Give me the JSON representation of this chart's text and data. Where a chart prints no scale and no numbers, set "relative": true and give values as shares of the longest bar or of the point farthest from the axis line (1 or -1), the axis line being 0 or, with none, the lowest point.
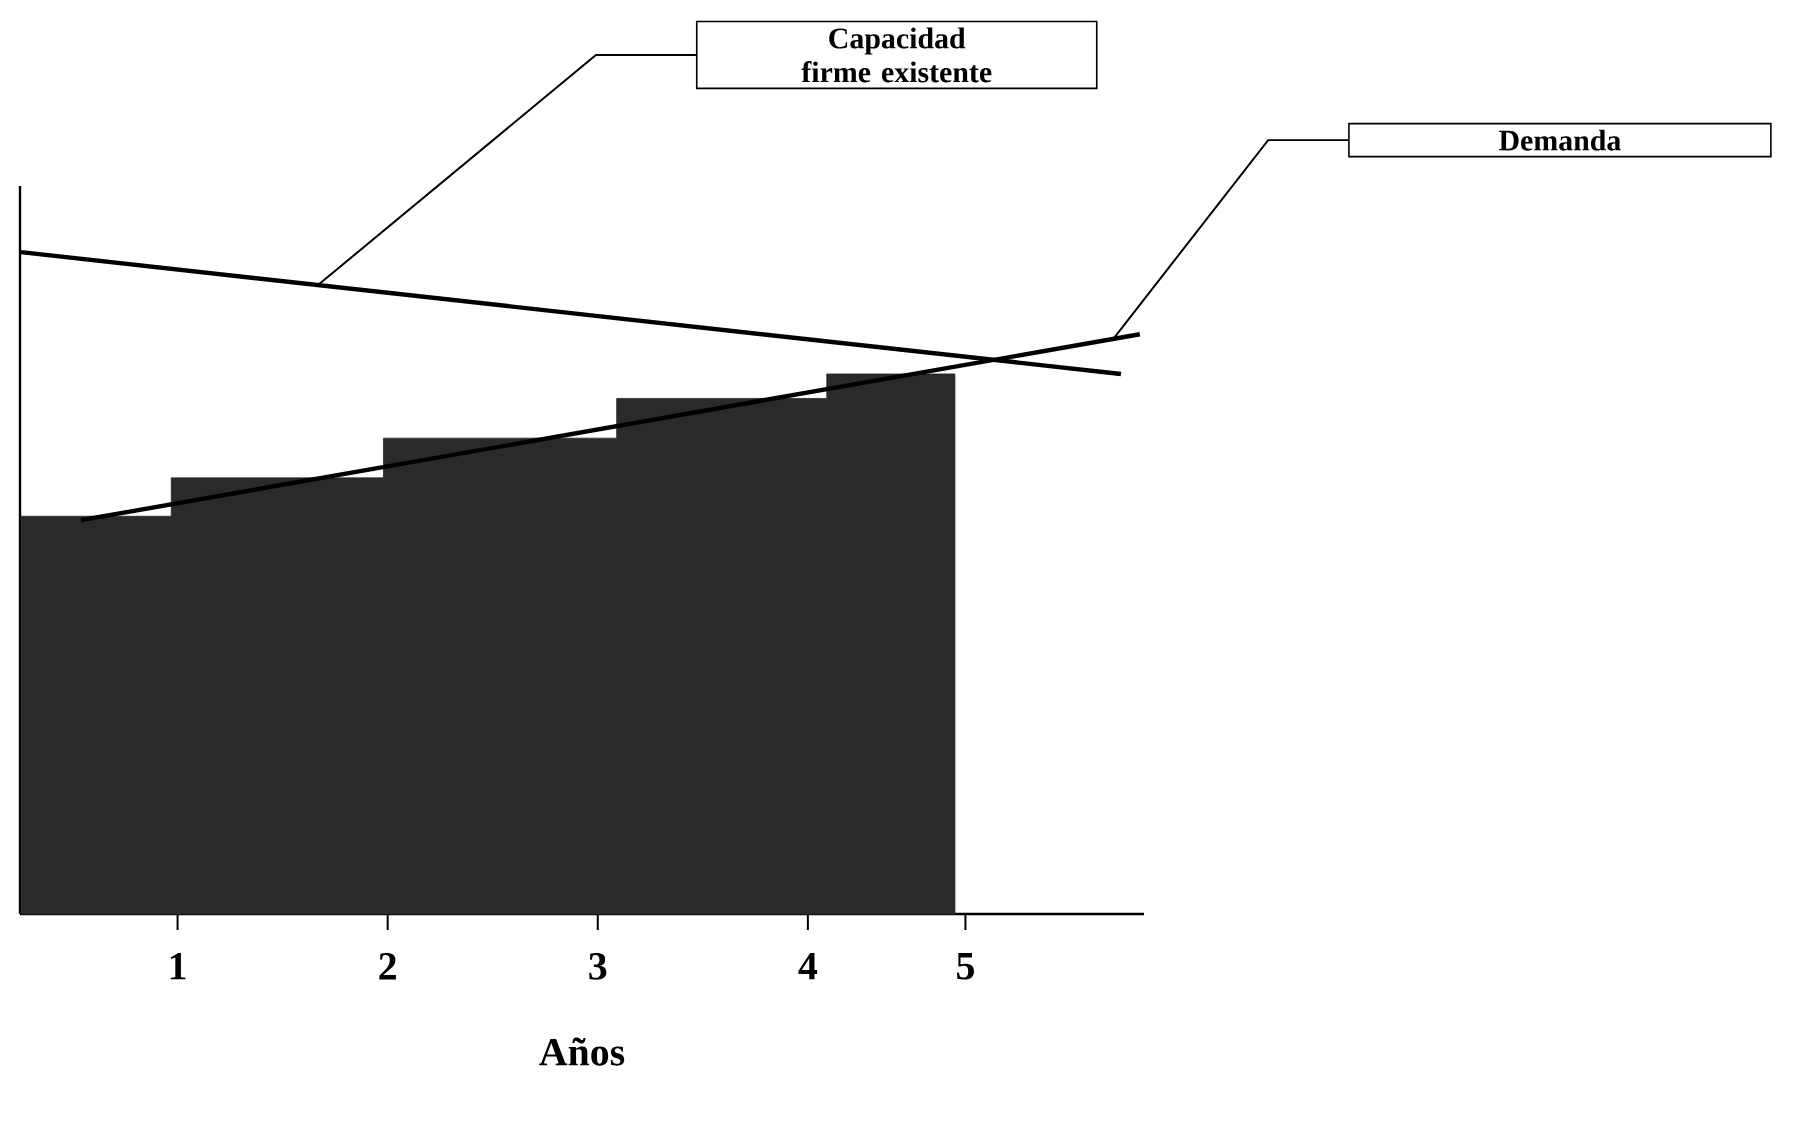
{
  "chart_data": {
    "type": "line",
    "relative": true,
    "xlabel": "Años",
    "xlim": [
      0.25,
      5.6
    ],
    "xticks": [
      1,
      2,
      3,
      4,
      {
        "value": 4.75,
        "label": "5"
      }
    ],
    "grid": false,
    "marker": "none",
    "series": [
      {
        "name": "Capacidad firme existente",
        "color": "#000000",
        "x": [
          0.255,
          5.49
        ],
        "values": [
          1.0,
          0.816
        ]
      },
      {
        "name": "Demanda",
        "color": "#000000",
        "x": [
          0.54,
          5.58
        ],
        "values": [
          0.595,
          0.876
        ]
      },
      {
        "type": "area",
        "color": "#2a2a2a",
        "x": [
          0.255,
          0.97,
          0.97,
          1.98,
          1.98,
          3.09,
          3.09,
          4.09,
          4.09,
          4.7
        ],
        "values": [
          0.601,
          0.601,
          0.659,
          0.659,
          0.719,
          0.719,
          0.779,
          0.779,
          0.816,
          0.816
        ]
      }
    ]
  }
}
